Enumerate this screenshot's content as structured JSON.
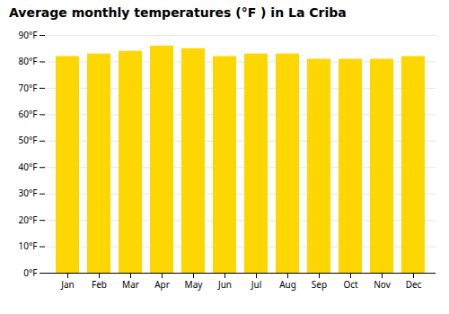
{
  "chart_data": {
    "type": "bar",
    "title": "Average monthly temperatures (°F ) in La Criba",
    "categories": [
      "Jan",
      "Feb",
      "Mar",
      "Apr",
      "May",
      "Jun",
      "Jul",
      "Aug",
      "Sep",
      "Oct",
      "Nov",
      "Dec"
    ],
    "values": [
      82,
      83,
      84,
      86,
      85,
      82,
      83,
      83,
      81,
      81,
      81,
      82
    ],
    "color": "#FFD700",
    "ylim": [
      0,
      90
    ],
    "yticks": [
      {
        "value": 0,
        "label": "0°F"
      },
      {
        "value": 10,
        "label": "10°F"
      },
      {
        "value": 20,
        "label": "20°F"
      },
      {
        "value": 30,
        "label": "30°F"
      },
      {
        "value": 40,
        "label": "40°F"
      },
      {
        "value": 50,
        "label": "50°F"
      },
      {
        "value": 60,
        "label": "60°F"
      },
      {
        "value": 70,
        "label": "70°F"
      },
      {
        "value": 80,
        "label": "80°F"
      },
      {
        "value": 90,
        "label": "90°F"
      }
    ],
    "grid": true
  }
}
